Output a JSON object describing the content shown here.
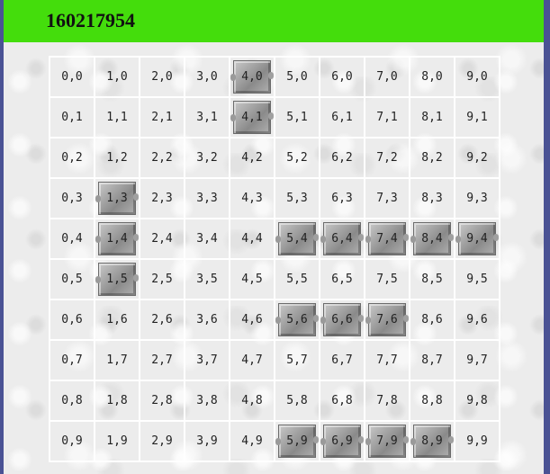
{
  "header": {
    "title": "160217954",
    "color": "#44dd0c"
  },
  "board": {
    "columns": 10,
    "rows": 10,
    "blocks": [
      "4,0",
      "4,1",
      "1,3",
      "1,4",
      "1,5",
      "5,4",
      "6,4",
      "7,4",
      "8,4",
      "9,4",
      "5,6",
      "6,6",
      "7,6",
      "5,9",
      "6,9",
      "7,9",
      "8,9"
    ]
  }
}
